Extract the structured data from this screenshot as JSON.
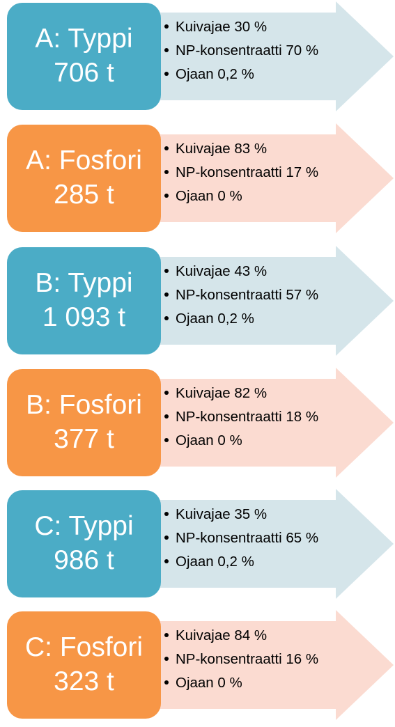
{
  "colors": {
    "nitrogen_box": "#4bacc6",
    "phosphorus_box": "#f79646",
    "nitrogen_arrow": "#d5e5ea",
    "phosphorus_arrow": "#fbdbd1"
  },
  "rows": [
    {
      "kind": "nitrogen",
      "title": "A: Typpi",
      "amount": "706 t",
      "items": [
        "Kuivajae 30 %",
        "NP-konsentraatti 70 %",
        "Ojaan 0,2 %"
      ]
    },
    {
      "kind": "phosphorus",
      "title": "A: Fosfori",
      "amount": "285 t",
      "items": [
        "Kuivajae 83 %",
        "NP-konsentraatti 17 %",
        "Ojaan 0 %"
      ]
    },
    {
      "kind": "nitrogen",
      "title": "B: Typpi",
      "amount": "1 093 t",
      "items": [
        "Kuivajae 43 %",
        "NP-konsentraatti 57 %",
        "Ojaan 0,2 %"
      ]
    },
    {
      "kind": "phosphorus",
      "title": "B: Fosfori",
      "amount": "377 t",
      "items": [
        "Kuivajae 82 %",
        "NP-konsentraatti 18 %",
        "Ojaan 0 %"
      ]
    },
    {
      "kind": "nitrogen",
      "title": "C: Typpi",
      "amount": "986 t",
      "items": [
        "Kuivajae 35 %",
        "NP-konsentraatti 65 %",
        "Ojaan 0,2 %"
      ]
    },
    {
      "kind": "phosphorus",
      "title": "C: Fosfori",
      "amount": "323 t",
      "items": [
        "Kuivajae 84 %",
        "NP-konsentraatti 16 %",
        "Ojaan 0 %"
      ]
    }
  ]
}
